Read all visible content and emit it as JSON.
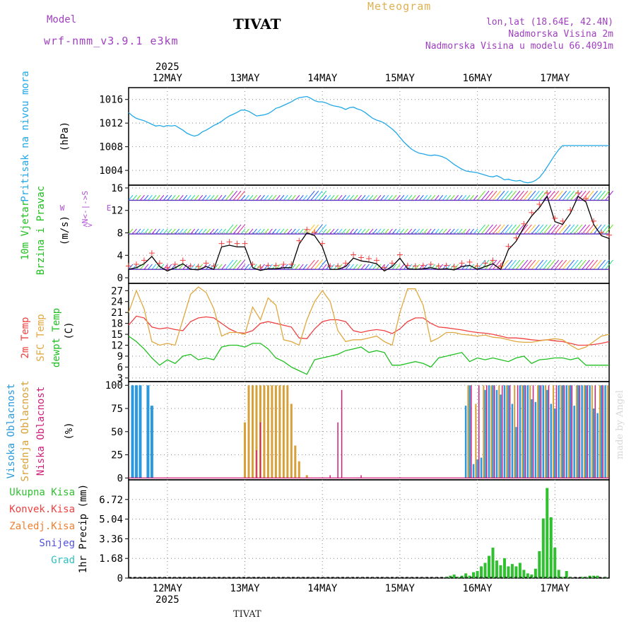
{
  "header": {
    "model_label": "Model",
    "model_name": "wrf-nmm_v3.9.1 e3km",
    "title": "TIVAT",
    "meteogram_label": "Meteogram",
    "lonlat": "lon,lat (18.64E, 42.4N)",
    "altitude": "Nadmorska Visina 2m",
    "altitude_model": "Nadmorska Visina u modelu 66.4091m"
  },
  "footer": {
    "station": "TIVAT",
    "credit": "made by Angel"
  },
  "colors": {
    "pressure": "#22a8e8",
    "wind_label": "#20c020",
    "temp2m": "#f04040",
    "sfc": "#e0a840",
    "dewpt": "#20c020",
    "cloud_high": "#2a9ae0",
    "cloud_mid": "#d8a038",
    "cloud_low": "#d0207a",
    "precip_total": "#30c030",
    "precip_conv": "#f04040",
    "precip_frozen": "#f08030",
    "snow": "#5050e0",
    "graupel": "#30c0c0",
    "compass": "#b050d0"
  },
  "chart_data": [
    {
      "panel": "pressure",
      "type": "line",
      "ylabel_left": "Pritisak na nivou mora",
      "ylabel_unit": "(hPa)",
      "yticks": [
        1004,
        1008,
        1012,
        1016
      ],
      "ylim": [
        1001.5,
        1018
      ],
      "x": [
        0,
        0.05,
        0.1,
        0.15,
        0.2,
        0.25,
        0.3,
        0.35,
        0.4,
        0.45,
        0.5,
        0.55,
        0.6,
        0.65,
        0.7,
        0.75,
        0.8,
        0.85,
        0.9,
        0.95,
        1.0,
        1.05,
        1.1,
        1.15,
        1.2,
        1.25,
        1.3,
        1.35,
        1.4,
        1.45,
        1.5,
        1.55,
        1.6,
        1.65,
        1.7,
        1.75,
        1.8,
        1.85,
        1.9,
        1.95,
        2.0,
        2.05,
        2.1,
        2.15,
        2.2,
        2.25,
        2.3,
        2.35,
        2.4,
        2.45,
        2.5,
        2.55,
        2.6,
        2.65,
        2.7,
        2.75,
        2.8,
        2.85,
        2.9,
        2.95,
        3.0,
        3.05,
        3.1,
        3.15,
        3.2,
        3.25,
        3.3,
        3.35,
        3.4,
        3.45,
        3.5,
        3.55,
        3.6,
        3.65,
        3.7,
        3.75,
        3.8,
        3.85,
        3.9,
        3.95,
        4.0,
        4.05,
        4.1,
        4.15,
        4.2,
        4.25,
        4.3,
        4.35,
        4.4,
        4.45,
        4.5,
        4.55,
        4.6,
        4.65,
        4.7,
        4.75,
        4.8,
        4.85,
        4.9,
        4.95,
        5.0,
        5.05,
        5.1,
        5.15,
        5.2,
        5.25,
        5.3,
        5.35,
        5.4,
        5.45,
        5.5,
        5.55,
        5.6,
        5.65,
        5.7,
        5.75,
        5.8,
        5.85,
        5.9,
        5.95,
        6.0,
        6.05,
        6.1,
        6.15,
        6.2
      ],
      "values": [
        1013.8,
        1013.2,
        1012.8,
        1012.6,
        1012.4,
        1012.1,
        1011.8,
        1011.5,
        1011.6,
        1011.4,
        1011.6,
        1011.5,
        1011.6,
        1011.2,
        1010.8,
        1010.3,
        1010.0,
        1009.8,
        1010.0,
        1010.5,
        1010.8,
        1011.2,
        1011.6,
        1011.9,
        1012.3,
        1012.8,
        1013.2,
        1013.5,
        1013.8,
        1014.2,
        1014.2,
        1014.0,
        1013.6,
        1013.2,
        1013.3,
        1013.4,
        1013.6,
        1014.0,
        1014.5,
        1014.7,
        1015.0,
        1015.3,
        1015.6,
        1016.0,
        1016.3,
        1016.4,
        1016.5,
        1016.2,
        1015.8,
        1015.6,
        1015.6,
        1015.4,
        1015.1,
        1014.9,
        1014.8,
        1014.6,
        1014.3,
        1014.6,
        1014.7,
        1014.4,
        1014.2,
        1013.8,
        1013.3,
        1012.8,
        1012.5,
        1012.3,
        1012.0,
        1011.5,
        1011.0,
        1010.4,
        1009.6,
        1008.8,
        1008.2,
        1007.6,
        1007.2,
        1006.9,
        1006.8,
        1006.6,
        1006.5,
        1006.6,
        1006.5,
        1006.3,
        1006.0,
        1005.5,
        1005.0,
        1004.6,
        1004.2,
        1003.9,
        1003.8,
        1003.7,
        1003.6,
        1003.4,
        1003.2,
        1003.0,
        1002.9,
        1003.1,
        1002.8,
        1002.4,
        1002.5,
        1002.3,
        1002.2,
        1002.3,
        1002.0,
        1001.9,
        1002.0,
        1002.3,
        1002.8,
        1003.6,
        1004.6,
        1005.6,
        1006.6,
        1007.5,
        1008.2,
        1008.2,
        1008.2,
        1008.2,
        1008.2,
        1008.2,
        1008.2,
        1008.2,
        1008.2,
        1008.2,
        1008.2,
        1008.2,
        1008.2
      ]
    },
    {
      "panel": "wind",
      "type": "line",
      "ylabel_left": [
        "10m Vjetar",
        "Brzina i Pravac"
      ],
      "ylabel_unit": "(m/s)",
      "compass": [
        "N",
        "<",
        "-",
        "|",
        "-",
        ">",
        "S",
        "W",
        "E",
        "<",
        ">"
      ],
      "yticks": [
        0,
        4,
        8,
        12,
        16
      ],
      "ylim": [
        -1,
        16.5
      ],
      "x": [
        0,
        0.1,
        0.2,
        0.3,
        0.4,
        0.5,
        0.6,
        0.7,
        0.8,
        0.9,
        1.0,
        1.1,
        1.2,
        1.3,
        1.4,
        1.5,
        1.6,
        1.7,
        1.8,
        1.9,
        2.0,
        2.1,
        2.2,
        2.3,
        2.4,
        2.5,
        2.6,
        2.7,
        2.8,
        2.9,
        3.0,
        3.1,
        3.2,
        3.3,
        3.4,
        3.5,
        3.6,
        3.7,
        3.8,
        3.9,
        4.0,
        4.1,
        4.2,
        4.3,
        4.4,
        4.5,
        4.6,
        4.7,
        4.8,
        4.9,
        5.0,
        5.1,
        5.2,
        5.3,
        5.4,
        5.5,
        5.6,
        5.7,
        5.8,
        5.9,
        6.0,
        6.1,
        6.2
      ],
      "values": [
        1.5,
        1.8,
        2.5,
        3.8,
        2.0,
        1.2,
        1.8,
        2.5,
        1.5,
        1.4,
        2.0,
        1.5,
        5.5,
        5.8,
        5.5,
        5.5,
        1.8,
        1.3,
        1.6,
        1.6,
        1.8,
        1.8,
        6.0,
        8.0,
        7.5,
        5.5,
        1.5,
        1.5,
        2.0,
        3.5,
        3.0,
        2.8,
        2.5,
        1.2,
        2.0,
        3.5,
        1.6,
        1.5,
        1.6,
        1.8,
        1.5,
        1.6,
        1.4,
        2.0,
        2.2,
        1.5,
        2.0,
        2.5,
        1.5,
        5.0,
        6.5,
        9.0,
        11.0,
        12.5,
        14.5,
        10.0,
        9.5,
        11.5,
        14.5,
        13.5,
        9.5,
        7.5,
        7.0
      ],
      "gust_bands_ms": [
        1.5,
        7.8,
        13.8
      ]
    },
    {
      "panel": "temperature",
      "type": "line",
      "ylabel_left": [
        "2m Temp",
        "SFC Temp",
        "dewpt Temp"
      ],
      "ylabel_unit": "(C)",
      "yticks": [
        3,
        6,
        9,
        12,
        15,
        18,
        21,
        24,
        27
      ],
      "ylim": [
        2,
        29
      ],
      "x": [
        0,
        0.1,
        0.2,
        0.3,
        0.4,
        0.5,
        0.6,
        0.7,
        0.8,
        0.9,
        1.0,
        1.1,
        1.2,
        1.3,
        1.4,
        1.5,
        1.6,
        1.7,
        1.8,
        1.9,
        2.0,
        2.1,
        2.2,
        2.3,
        2.4,
        2.5,
        2.6,
        2.7,
        2.8,
        2.9,
        3.0,
        3.1,
        3.2,
        3.3,
        3.4,
        3.5,
        3.6,
        3.7,
        3.8,
        3.9,
        4.0,
        4.1,
        4.2,
        4.3,
        4.4,
        4.5,
        4.6,
        4.7,
        4.8,
        4.9,
        5.0,
        5.1,
        5.2,
        5.3,
        5.4,
        5.5,
        5.6,
        5.7,
        5.8,
        5.9,
        6.0,
        6.1,
        6.2
      ],
      "series": [
        {
          "name": "2m Temp",
          "values": [
            17.5,
            20.0,
            19.5,
            17.0,
            16.5,
            16.8,
            16.3,
            16.0,
            18.5,
            19.5,
            19.8,
            19.5,
            18.0,
            16.5,
            15.5,
            15.3,
            16.0,
            18.0,
            18.5,
            18.0,
            17.5,
            17.0,
            14.0,
            13.8,
            16.5,
            18.5,
            19.0,
            19.0,
            18.5,
            16.0,
            15.5,
            16.0,
            16.3,
            16.0,
            15.2,
            16.5,
            18.5,
            19.5,
            19.5,
            18.0,
            17.0,
            16.8,
            16.5,
            16.2,
            15.8,
            15.5,
            15.3,
            15.0,
            14.5,
            14.0,
            14.0,
            13.8,
            13.5,
            13.3,
            13.5,
            13.2,
            13.0,
            12.5,
            12.0,
            12.0,
            12.2,
            12.5,
            13.0
          ]
        },
        {
          "name": "SFC Temp",
          "values": [
            21.0,
            27.0,
            22.0,
            13.0,
            12.0,
            12.5,
            12.0,
            19.0,
            26.0,
            28.0,
            26.5,
            22.0,
            14.5,
            15.5,
            15.5,
            15.0,
            22.5,
            19.0,
            25.0,
            23.0,
            13.5,
            13.0,
            12.0,
            19.0,
            24.0,
            27.0,
            24.0,
            16.0,
            13.0,
            13.5,
            13.5,
            14.0,
            14.5,
            13.0,
            12.0,
            21.0,
            27.5,
            27.5,
            23.0,
            13.0,
            14.0,
            15.5,
            15.5,
            15.0,
            14.8,
            14.5,
            14.8,
            14.2,
            14.0,
            13.5,
            13.0,
            12.8,
            12.8,
            13.2,
            13.5,
            13.8,
            13.5,
            12.0,
            10.8,
            11.5,
            13.0,
            14.5,
            15.0
          ]
        },
        {
          "name": "dewpt Temp",
          "values": [
            14.5,
            13.0,
            11.0,
            8.5,
            6.5,
            8.0,
            7.0,
            9.0,
            9.5,
            8.0,
            8.5,
            8.0,
            11.5,
            12.0,
            12.0,
            11.5,
            12.5,
            12.5,
            11.0,
            8.5,
            7.5,
            6.0,
            5.0,
            4.0,
            8.0,
            8.5,
            9.0,
            9.5,
            10.5,
            11.0,
            11.5,
            10.0,
            10.5,
            10.0,
            6.5,
            6.5,
            7.0,
            7.5,
            7.0,
            6.0,
            8.5,
            9.0,
            9.5,
            10.0,
            7.5,
            8.5,
            8.0,
            8.5,
            8.0,
            7.5,
            8.5,
            9.0,
            7.0,
            8.0,
            8.2,
            8.5,
            8.5,
            8.0,
            8.5,
            6.5,
            6.5,
            6.5,
            6.5
          ]
        }
      ]
    },
    {
      "panel": "clouds",
      "type": "bar",
      "ylabel_left": [
        "Visoka Oblacnost",
        "Srednja Oblacnost",
        "Niska Oblacnost"
      ],
      "ylabel_unit": "(%)",
      "yticks": [
        0,
        25,
        50,
        75,
        100
      ],
      "ylim": [
        -2,
        104
      ],
      "series": [
        {
          "name": "Visoka Oblacnost",
          "x": [
            0.05,
            0.1,
            0.15,
            0.25,
            0.3
          ],
          "values": [
            100,
            100,
            100,
            100,
            78
          ]
        },
        {
          "name": "Srednja Oblacnost",
          "x": [
            1.5,
            1.55,
            1.6,
            1.65,
            1.7,
            1.75,
            1.8,
            1.85,
            1.9,
            1.95,
            2.0,
            2.05,
            2.1,
            2.15,
            2.2,
            2.3
          ],
          "values": [
            60,
            100,
            100,
            100,
            100,
            100,
            100,
            100,
            100,
            100,
            100,
            100,
            80,
            35,
            18,
            3
          ]
        },
        {
          "name": "Niska Oblacnost",
          "x": [
            1.65,
            1.7,
            2.6,
            2.7,
            2.75,
            3.0
          ],
          "values": [
            30,
            60,
            3,
            60,
            95,
            3
          ]
        },
        {
          "name": "Visoka Oblacnost 16-17 MAY",
          "x": [
            4.35,
            4.4,
            4.45,
            4.5,
            4.55,
            4.6,
            4.65,
            4.7,
            4.75,
            4.8,
            4.85,
            4.9,
            4.95,
            5.0,
            5.05,
            5.1,
            5.15,
            5.2,
            5.25,
            5.3,
            5.35,
            5.4,
            5.45,
            5.5,
            5.55,
            5.6,
            5.65,
            5.7,
            5.75,
            5.8,
            5.85,
            5.9,
            5.95,
            6.0,
            6.05,
            6.1,
            6.15
          ],
          "values": [
            78,
            100,
            15,
            20,
            22,
            95,
            100,
            100,
            95,
            90,
            100,
            100,
            80,
            55,
            100,
            100,
            100,
            85,
            82,
            100,
            100,
            95,
            80,
            75,
            100,
            100,
            100,
            100,
            78,
            100,
            100,
            100,
            100,
            75,
            70,
            100,
            100
          ]
        },
        {
          "name": "Srednja Oblacnost 16-17 MAY",
          "x": [
            4.38,
            4.48,
            4.58,
            4.68,
            4.78,
            4.88,
            4.98,
            5.08,
            5.18,
            5.28,
            5.38,
            5.48,
            5.58,
            5.68,
            5.78,
            5.88,
            5.98,
            6.08,
            6.18
          ],
          "values": [
            100,
            80,
            100,
            100,
            100,
            100,
            100,
            100,
            100,
            100,
            100,
            100,
            100,
            100,
            100,
            100,
            100,
            100,
            100
          ]
        },
        {
          "name": "Niska Oblacnost 16-17 MAY",
          "x": [
            4.42,
            4.52,
            4.62,
            4.72,
            4.82,
            4.92,
            5.02,
            5.12,
            5.22,
            5.32,
            5.42,
            5.52,
            5.62,
            5.72,
            5.82,
            5.92,
            6.02,
            6.12
          ],
          "values": [
            100,
            100,
            100,
            100,
            100,
            100,
            100,
            100,
            100,
            100,
            100,
            100,
            100,
            100,
            100,
            100,
            100,
            100
          ]
        }
      ]
    },
    {
      "panel": "precipitation",
      "type": "bar",
      "legend": [
        "Ukupna Kisa",
        "Konvek.Kisa",
        "Zaledj.Kisa",
        "Snijeg",
        "Grad"
      ],
      "ylabel_unit": "1hr Precip (mm)",
      "yticks": [
        "0",
        "1.68",
        "3.36",
        "5.04",
        "6.72"
      ],
      "ylim": [
        0,
        8.4
      ],
      "x": [
        4.1,
        4.15,
        4.2,
        4.25,
        4.3,
        4.35,
        4.4,
        4.45,
        4.5,
        4.55,
        4.6,
        4.65,
        4.7,
        4.75,
        4.8,
        4.85,
        4.9,
        4.95,
        5.0,
        5.05,
        5.1,
        5.15,
        5.2,
        5.25,
        5.3,
        5.35,
        5.4,
        5.45,
        5.5,
        5.55,
        5.6,
        5.65,
        5.7,
        5.75,
        5.8,
        5.85,
        5.9,
        5.95,
        6.0,
        6.05,
        6.1,
        6.15
      ],
      "values": [
        0.1,
        0.2,
        0.3,
        0.1,
        0.2,
        0.4,
        0.2,
        0.5,
        0.6,
        1.0,
        1.3,
        1.9,
        2.6,
        1.5,
        1.1,
        1.7,
        1.0,
        1.2,
        1.0,
        1.3,
        0.7,
        0.4,
        0.3,
        0.8,
        2.3,
        5.1,
        7.7,
        5.2,
        2.6,
        0.7,
        0.1,
        0.6,
        0.1,
        0.0,
        0.0,
        0.1,
        0.1,
        0.2,
        0.2,
        0.2,
        0.0,
        0.1
      ]
    }
  ],
  "xaxis": {
    "top_year": "2025",
    "bottom_year": "2025",
    "day_labels": [
      "12MAY",
      "13MAY",
      "14MAY",
      "15MAY",
      "16MAY",
      "17MAY"
    ],
    "day_positions": [
      0.5,
      1.5,
      2.5,
      3.5,
      4.5,
      5.5
    ],
    "range": [
      0,
      6.2
    ]
  }
}
